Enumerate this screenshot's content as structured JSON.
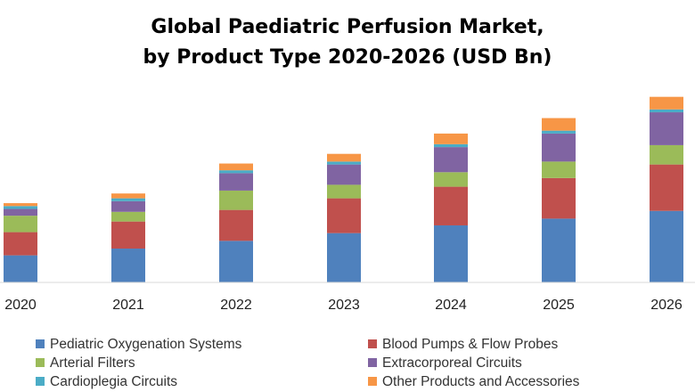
{
  "chart_data": {
    "type": "bar",
    "stacked": true,
    "title": [
      "Global Paediatric Perfusion Market,",
      "by Product Type 2020-2026 (USD Bn)"
    ],
    "categories": [
      "2020",
      "2021",
      "2022",
      "2023",
      "2024",
      "2025",
      "2026"
    ],
    "series": [
      {
        "name": "Pediatric Oxygenation Systems",
        "color": "#4F81BD",
        "values": [
          0.28,
          0.35,
          0.43,
          0.51,
          0.59,
          0.66,
          0.74
        ]
      },
      {
        "name": "Blood Pumps & Flow Probes",
        "color": "#C0504D",
        "values": [
          0.24,
          0.28,
          0.32,
          0.36,
          0.4,
          0.42,
          0.48
        ]
      },
      {
        "name": "Arterial Filters",
        "color": "#9BBB59",
        "values": [
          0.17,
          0.1,
          0.2,
          0.14,
          0.15,
          0.17,
          0.2
        ]
      },
      {
        "name": "Extracorporeal Circuits",
        "color": "#8064A2",
        "values": [
          0.07,
          0.11,
          0.18,
          0.21,
          0.26,
          0.29,
          0.34
        ]
      },
      {
        "name": "Cardioplegia Circuits",
        "color": "#4BACC6",
        "values": [
          0.03,
          0.03,
          0.03,
          0.03,
          0.03,
          0.03,
          0.03
        ]
      },
      {
        "name": "Other Products and Accessories",
        "color": "#F79646",
        "values": [
          0.03,
          0.05,
          0.07,
          0.08,
          0.11,
          0.13,
          0.13
        ]
      }
    ],
    "ylim": [
      0,
      2.0
    ],
    "grid": false,
    "legend_position": "bottom"
  }
}
